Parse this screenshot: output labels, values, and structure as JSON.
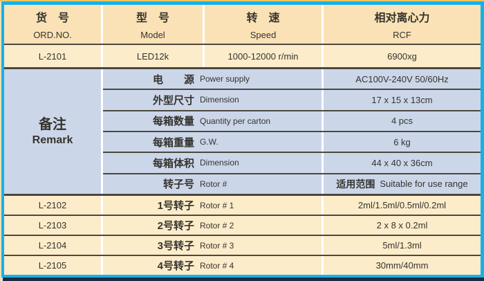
{
  "colors": {
    "frame_cyan": "#17b1e8",
    "bottom_navy": "#1d2b45",
    "top_strip_gold": "#edc762",
    "header_bg": "#fbe2b6",
    "row_bg": "#fcecca",
    "remark_bg": "#ccd6e9",
    "rule_dark": "#4a473e",
    "separator_white": "#ffffff",
    "text": "#35332e"
  },
  "table": {
    "header": {
      "col1_cn": "货　号",
      "col1_en": "ORD.NO.",
      "col2_cn": "型　号",
      "col2_en": "Model",
      "col3_cn": "转　速",
      "col3_en": "Speed",
      "col4_cn": "相对离心力",
      "col4_en": "RCF"
    },
    "product_row": {
      "ord_no": "L-2101",
      "model": "LED12k",
      "speed": "1000-12000 r/min",
      "rcf": "6900xg"
    },
    "remark": {
      "label_cn": "备注",
      "label_en": "Remark",
      "rows": [
        {
          "cn": "电　　源",
          "en": "Power supply",
          "value": "AC100V-240V  50/60Hz"
        },
        {
          "cn": "外型尺寸",
          "en": "Dimension",
          "value": "17 x 15 x 13cm"
        },
        {
          "cn": "每箱数量",
          "en": "Quantity per carton",
          "value": "4 pcs"
        },
        {
          "cn": "每箱重量",
          "en": "G.W.",
          "value": "6 kg"
        },
        {
          "cn": "每箱体积",
          "en": "Dimension",
          "value": "44 x 40 x 36cm"
        },
        {
          "cn": "转子号",
          "en": "Rotor #",
          "value_cn": "适用范围",
          "value_en": "Suitable for use range"
        }
      ]
    },
    "rotor_rows": [
      {
        "ord_no": "L-2102",
        "cn": "1号转子",
        "en": "Rotor # 1",
        "value": "2ml/1.5ml/0.5ml/0.2ml"
      },
      {
        "ord_no": "L-2103",
        "cn": "2号转子",
        "en": "Rotor # 2",
        "value": "2 x 8 x 0.2ml"
      },
      {
        "ord_no": "L-2104",
        "cn": "3号转子",
        "en": "Rotor # 3",
        "value": "5ml/1.3ml"
      },
      {
        "ord_no": "L-2105",
        "cn": "4号转子",
        "en": "Rotor # 4",
        "value": "30mm/40mm"
      }
    ]
  }
}
